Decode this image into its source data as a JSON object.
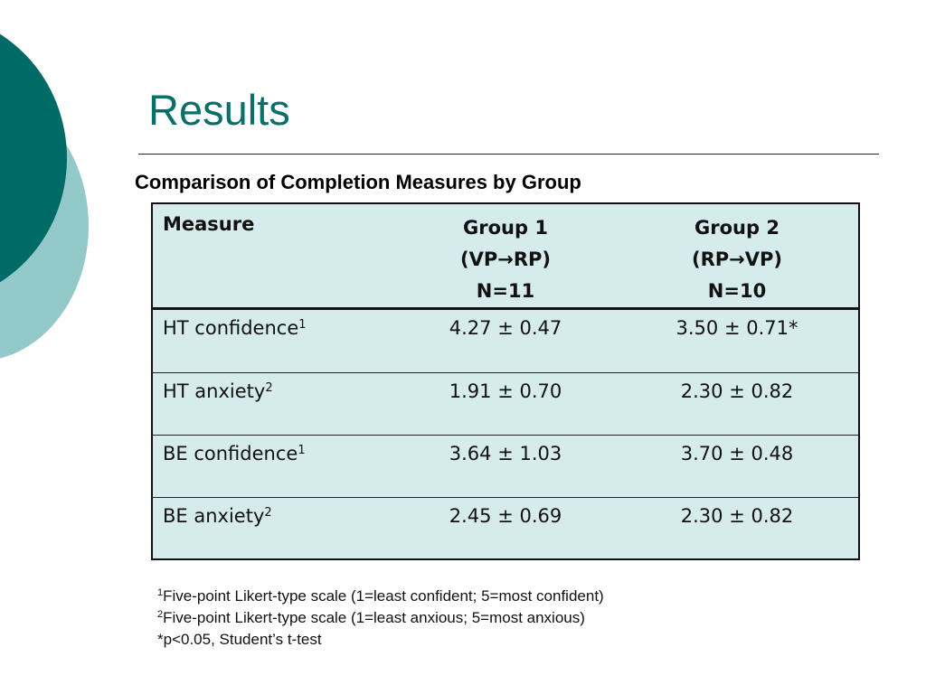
{
  "title": "Results",
  "subtitle": "Comparison of Completion Measures by Group",
  "table": {
    "headers": {
      "measure": "Measure",
      "group1": [
        "Group 1",
        "(VP→RP)",
        "N=11"
      ],
      "group2": [
        "Group 2",
        "(RP→VP)",
        "N=10"
      ]
    },
    "rows": [
      {
        "measure": "HT confidence",
        "sup": "1",
        "group1": "4.27 ± 0.47",
        "group2": "3.50 ± 0.71*"
      },
      {
        "measure": "HT anxiety",
        "sup": "2",
        "group1": "1.91 ± 0.70",
        "group2": "2.30 ± 0.82"
      },
      {
        "measure": "BE confidence",
        "sup": "1",
        "group1": "3.64 ± 1.03",
        "group2": "3.70 ± 0.48"
      },
      {
        "measure": "BE anxiety",
        "sup": "2",
        "group1": "2.45 ± 0.69",
        "group2": "2.30 ± 0.82"
      }
    ]
  },
  "footnotes": [
    {
      "marker": "1",
      "text": "Five-point Likert-type scale (1=least confident; 5=most confident)"
    },
    {
      "marker": "2",
      "text": "Five-point Likert-type scale (1=least anxious; 5=most anxious)"
    },
    {
      "marker": "",
      "text": "*p<0.05, Student’s t-test"
    }
  ],
  "colors": {
    "accent_dark": "#006b66",
    "accent_light": "#93c9c8",
    "table_background": "#d6ebeb",
    "title_color": "#0a6f6a"
  }
}
